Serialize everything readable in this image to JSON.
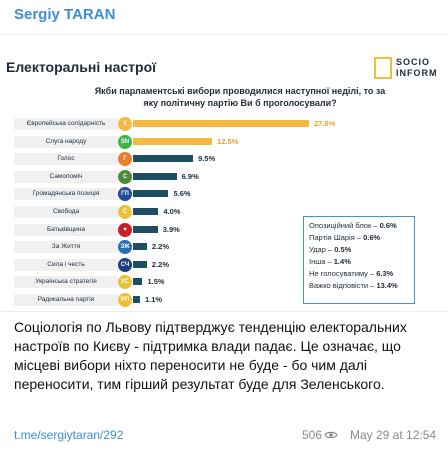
{
  "post": {
    "author": "Sergiy TARAN",
    "message": "Соціологія по Львову підтверджує тенденцію електоральних настроїв по Києву - підтримка влади падає. Це означає, що місцеві вибори ніхто переносити не буде - бо чим далі переносити, тим гірший результат буде для Зеленського.",
    "link": "t.me/sergiytaran/292",
    "views": "506",
    "date": "May 29 at 12:54"
  },
  "infographic": {
    "title": "Електоральні настрої",
    "logo_line1": "SOCIO",
    "logo_line2": "INFORM",
    "question": "Якби парламентські вибори проводилися наступної неділі, то за яку політичну партію Ви б проголосували?",
    "colors": {
      "top": "#f5b942",
      "other": "#1d4f63"
    },
    "others": [
      {
        "label": "Опозиційний блок – ",
        "value": "0.6%"
      },
      {
        "label": "Партія Шарія – ",
        "value": "0.6%"
      },
      {
        "label": "Удар – ",
        "value": "0.5%"
      },
      {
        "label": "Інша – ",
        "value": "1.4%"
      },
      {
        "label": "Не голосуватиму – ",
        "value": "6.3%"
      },
      {
        "label": "Важко відповісти – ",
        "value": "13.4%"
      }
    ]
  },
  "chart_data": {
    "type": "bar",
    "orientation": "horizontal",
    "title": "Електоральні настрої",
    "categories": [
      "Європейська солідарність",
      "Слуга народу",
      "Голос",
      "Самопоміч",
      "Громадянська позиція",
      "Свобода",
      "Батьківщина",
      "За Життя",
      "Сила і честь",
      "Українська стратегія",
      "Радикальна партія"
    ],
    "values": [
      27.8,
      12.5,
      9.5,
      6.9,
      5.6,
      4.0,
      3.9,
      2.2,
      2.2,
      1.5,
      1.1
    ],
    "value_labels": [
      "27.8%",
      "12.5%",
      "9.5%",
      "6.9%",
      "5.6%",
      "4.0%",
      "3.9%",
      "2.2%",
      "2.2%",
      "1.5%",
      "1.1%"
    ],
    "icons": [
      {
        "glyph": "€",
        "color": "#f5b942"
      },
      {
        "glyph": "SN",
        "color": "#3bb54a"
      },
      {
        "glyph": "Г",
        "color": "#e87d2a"
      },
      {
        "glyph": "С",
        "color": "#4b8c3a"
      },
      {
        "glyph": "ГП",
        "color": "#1f4e9a"
      },
      {
        "glyph": "С",
        "color": "#e8c23a"
      },
      {
        "glyph": "♥",
        "color": "#c8202a"
      },
      {
        "glyph": "ЗЖ",
        "color": "#2a6fb5"
      },
      {
        "glyph": "СЧ",
        "color": "#1f3f7a"
      },
      {
        "glyph": "УС",
        "color": "#e8c23a"
      },
      {
        "glyph": "РП",
        "color": "#f0c030"
      }
    ]
  }
}
